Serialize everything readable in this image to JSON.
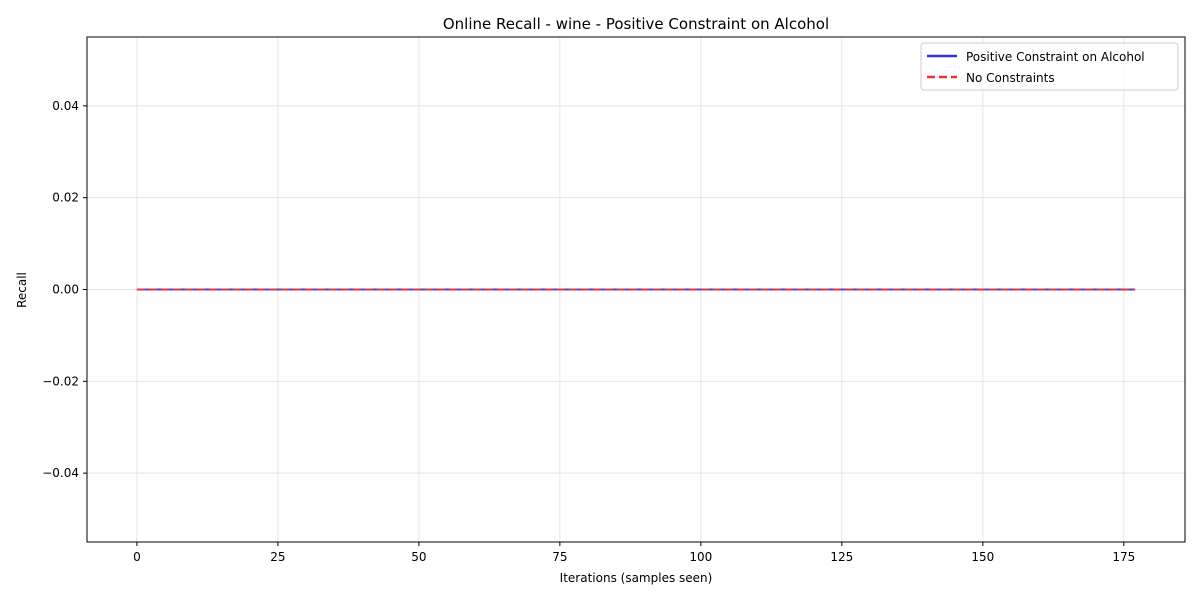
{
  "chart_data": {
    "type": "line",
    "title": "Online Recall - wine - Positive Constraint on Alcohol",
    "xlabel": "Iterations (samples seen)",
    "ylabel": "Recall",
    "xlim": [
      -8.85,
      185.85
    ],
    "ylim": [
      -0.055,
      0.055
    ],
    "x_ticks": [
      0,
      25,
      50,
      75,
      100,
      125,
      150,
      175
    ],
    "x_tick_labels": [
      "0",
      "25",
      "50",
      "75",
      "100",
      "125",
      "150",
      "175"
    ],
    "y_ticks": [
      -0.04,
      -0.02,
      0.0,
      0.02,
      0.04
    ],
    "y_tick_labels": [
      "−0.04",
      "−0.02",
      "0.00",
      "0.02",
      "0.04"
    ],
    "grid": true,
    "legend_position": "top-right",
    "series": [
      {
        "name": "Positive Constraint on Alcohol",
        "color": "#3333dd",
        "style": "solid",
        "x": [
          0,
          177
        ],
        "y": [
          0.0,
          0.0
        ]
      },
      {
        "name": "No Constraints",
        "color": "#ee3333",
        "style": "dashed",
        "x": [
          0,
          177
        ],
        "y": [
          0.0,
          0.0
        ]
      }
    ]
  }
}
